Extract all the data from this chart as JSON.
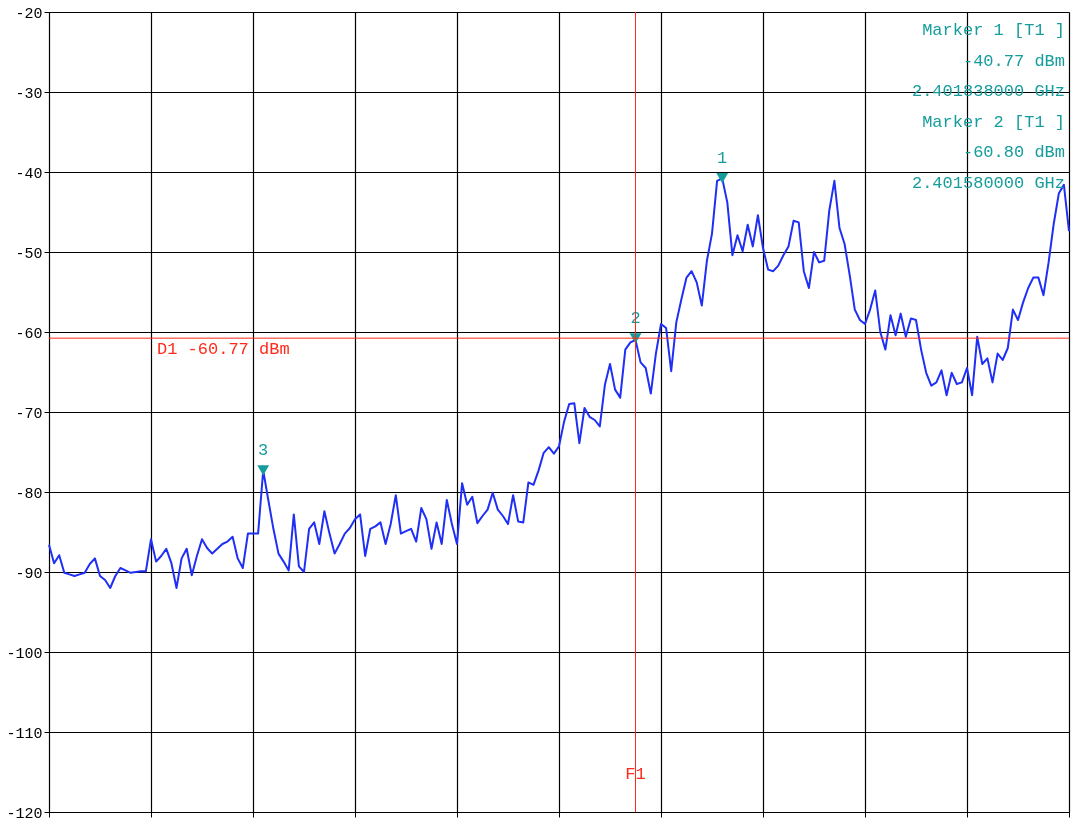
{
  "chart_data": {
    "type": "line",
    "categories": [
      null,
      null,
      null,
      null,
      null,
      null,
      null,
      null,
      null,
      null,
      null,
      null,
      null,
      null,
      null,
      null,
      null,
      null,
      null,
      null,
      null,
      null,
      null,
      null,
      null,
      null,
      null,
      null,
      null,
      null,
      null,
      null,
      null,
      null,
      null,
      null,
      null,
      null,
      null,
      null,
      null,
      null,
      null,
      null,
      null,
      null,
      null,
      null,
      null,
      null,
      null,
      null,
      null,
      null,
      null,
      null,
      null,
      null,
      null,
      null,
      null,
      null,
      null,
      null,
      null,
      null,
      null,
      null,
      null,
      null,
      null,
      null,
      null,
      null,
      null,
      null,
      null,
      null,
      null,
      null,
      null,
      null,
      null,
      null,
      null,
      null,
      null,
      null,
      null,
      null,
      null,
      null,
      null,
      null,
      null,
      null,
      null,
      null,
      null,
      null,
      null,
      null,
      null,
      null,
      null,
      null,
      null,
      null,
      null,
      null,
      null,
      null,
      null,
      null,
      null,
      null,
      null,
      null,
      null,
      null,
      null,
      null,
      null,
      null,
      null,
      null,
      null,
      null,
      null,
      null,
      null,
      null,
      null,
      null,
      null,
      null,
      null,
      null,
      null,
      null,
      null,
      null,
      null,
      null,
      null,
      null,
      null,
      null,
      null,
      null,
      null,
      null,
      null,
      null,
      null,
      null,
      null,
      null,
      null,
      null,
      null,
      null,
      null,
      null,
      null,
      null,
      null,
      null,
      null,
      null,
      null,
      null,
      null,
      null,
      null,
      null,
      null,
      null,
      null,
      null,
      null,
      null,
      null,
      null,
      null,
      null,
      null,
      null,
      null,
      null,
      null,
      null,
      null,
      null,
      null,
      null,
      null,
      null,
      null,
      null,
      null
    ],
    "ylim": [
      -120,
      -20
    ],
    "yticks": [
      -120,
      -110,
      -100,
      -90,
      -80,
      -70,
      -60,
      -50,
      -40,
      -30,
      -20
    ],
    "grid": true,
    "legend": false,
    "tick_labels": "y",
    "series": [
      {
        "color": "#1f2ff5",
        "line_style": "solid",
        "marker": "none",
        "values": [
          -86.6,
          -88.9,
          -87.9,
          -90.1,
          -90.3,
          -90.5,
          -90.3,
          -90.1,
          -89.0,
          -88.3,
          -90.5,
          -91.0,
          -92.0,
          -90.5,
          -89.5,
          -89.8,
          -90.1,
          -90.0,
          -89.9,
          -89.9,
          -85.9,
          -88.7,
          -88.0,
          -87.1,
          -88.9,
          -92.0,
          -88.3,
          -87.1,
          -90.4,
          -88.0,
          -85.9,
          -87.0,
          -87.7,
          -87.1,
          -86.5,
          -86.2,
          -85.6,
          -88.3,
          -89.5,
          -85.2,
          -85.2,
          -85.2,
          -77.3,
          -81.0,
          -84.6,
          -87.7,
          -88.7,
          -89.8,
          -82.8,
          -89.3,
          -90.0,
          -84.6,
          -83.8,
          -86.5,
          -82.4,
          -85.2,
          -87.7,
          -86.5,
          -85.2,
          -84.5,
          -83.4,
          -82.8,
          -88.0,
          -84.6,
          -84.3,
          -83.8,
          -86.5,
          -84.0,
          -80.4,
          -85.2,
          -84.9,
          -84.6,
          -86.2,
          -82.0,
          -83.4,
          -87.1,
          -83.8,
          -86.5,
          -81.0,
          -84.0,
          -86.5,
          -78.9,
          -81.6,
          -80.6,
          -83.9,
          -83.0,
          -82.2,
          -80.1,
          -82.2,
          -83.0,
          -84.0,
          -80.4,
          -83.7,
          -83.8,
          -78.8,
          -79.1,
          -77.3,
          -75.1,
          -74.4,
          -75.2,
          -74.3,
          -71.2,
          -69.0,
          -68.9,
          -73.9,
          -69.5,
          -70.6,
          -71.0,
          -71.8,
          -66.6,
          -64.0,
          -67.2,
          -68.2,
          -62.2,
          -61.3,
          -61.0,
          -63.8,
          -64.5,
          -67.7,
          -62.7,
          -59.0,
          -59.5,
          -64.9,
          -58.8,
          -55.9,
          -53.2,
          -52.4,
          -53.8,
          -56.7,
          -51.1,
          -47.7,
          -41.1,
          -40.8,
          -43.8,
          -50.4,
          -47.9,
          -49.9,
          -46.6,
          -49.3,
          -45.4,
          -49.5,
          -52.2,
          -52.4,
          -51.7,
          -50.4,
          -49.3,
          -46.1,
          -46.3,
          -52.4,
          -54.5,
          -50.0,
          -51.3,
          -51.1,
          -44.8,
          -41.1,
          -47.0,
          -49.0,
          -52.9,
          -57.2,
          -58.5,
          -59.0,
          -57.2,
          -54.8,
          -60.0,
          -62.2,
          -57.9,
          -60.4,
          -57.7,
          -60.6,
          -58.3,
          -58.5,
          -62.2,
          -65.1,
          -66.7,
          -66.3,
          -64.8,
          -67.9,
          -65.1,
          -66.5,
          -66.3,
          -64.5,
          -67.9,
          -60.6,
          -64.0,
          -63.3,
          -66.3,
          -62.7,
          -63.5,
          -62.0,
          -57.2,
          -58.5,
          -56.3,
          -54.5,
          -53.2,
          -53.2,
          -55.4,
          -51.3,
          -46.5,
          -42.7,
          -41.6,
          -47.4
        ]
      },
      {
        "type": "scatter",
        "name": "1",
        "color": "#169c9c",
        "marker": "triangle",
        "values": [
          null,
          null,
          null,
          null,
          null,
          null,
          null,
          null,
          null,
          null,
          null,
          null,
          null,
          null,
          null,
          null,
          null,
          null,
          null,
          null,
          null,
          null,
          null,
          null,
          null,
          null,
          null,
          null,
          null,
          null,
          null,
          null,
          null,
          null,
          null,
          null,
          null,
          null,
          null,
          null,
          null,
          null,
          null,
          null,
          null,
          null,
          null,
          null,
          null,
          null,
          null,
          null,
          null,
          null,
          null,
          null,
          null,
          null,
          null,
          null,
          null,
          null,
          null,
          null,
          null,
          null,
          null,
          null,
          null,
          null,
          null,
          null,
          null,
          null,
          null,
          null,
          null,
          null,
          null,
          null,
          null,
          null,
          null,
          null,
          null,
          null,
          null,
          null,
          null,
          null,
          null,
          null,
          null,
          null,
          null,
          null,
          null,
          null,
          null,
          null,
          null,
          null,
          null,
          null,
          null,
          null,
          null,
          null,
          null,
          null,
          null,
          null,
          null,
          null,
          null,
          null,
          null,
          null,
          null,
          null,
          null,
          null,
          null,
          null,
          null,
          null,
          null,
          null,
          null,
          null,
          null,
          null,
          -40.77,
          null,
          null,
          null,
          null,
          null,
          null,
          null,
          null,
          null,
          null,
          null,
          null,
          null,
          null,
          null,
          null,
          null,
          null,
          null,
          null,
          null,
          null,
          null,
          null,
          null,
          null,
          null,
          null,
          null,
          null,
          null,
          null,
          null,
          null,
          null,
          null,
          null,
          null,
          null,
          null,
          null,
          null,
          null,
          null,
          null,
          null,
          null,
          null,
          null,
          null,
          null,
          null,
          null,
          null,
          null,
          null,
          null,
          null,
          null,
          null,
          null,
          null,
          null,
          null,
          null,
          null,
          null,
          null
        ]
      },
      {
        "type": "scatter",
        "name": "2",
        "color": "#169c9c",
        "marker": "triangle",
        "values": [
          null,
          null,
          null,
          null,
          null,
          null,
          null,
          null,
          null,
          null,
          null,
          null,
          null,
          null,
          null,
          null,
          null,
          null,
          null,
          null,
          null,
          null,
          null,
          null,
          null,
          null,
          null,
          null,
          null,
          null,
          null,
          null,
          null,
          null,
          null,
          null,
          null,
          null,
          null,
          null,
          null,
          null,
          null,
          null,
          null,
          null,
          null,
          null,
          null,
          null,
          null,
          null,
          null,
          null,
          null,
          null,
          null,
          null,
          null,
          null,
          null,
          null,
          null,
          null,
          null,
          null,
          null,
          null,
          null,
          null,
          null,
          null,
          null,
          null,
          null,
          null,
          null,
          null,
          null,
          null,
          null,
          null,
          null,
          null,
          null,
          null,
          null,
          null,
          null,
          null,
          null,
          null,
          null,
          null,
          null,
          null,
          null,
          null,
          null,
          null,
          null,
          null,
          null,
          null,
          null,
          null,
          null,
          null,
          null,
          null,
          null,
          null,
          null,
          null,
          null,
          -60.8,
          null,
          null,
          null,
          null,
          null,
          null,
          null,
          null,
          null,
          null,
          null,
          null,
          null,
          null,
          null,
          null,
          null,
          null,
          null,
          null,
          null,
          null,
          null,
          null,
          null,
          null,
          null,
          null,
          null,
          null,
          null,
          null,
          null,
          null,
          null,
          null,
          null,
          null,
          null,
          null,
          null,
          null,
          null,
          null,
          null,
          null,
          null,
          null,
          null,
          null,
          null,
          null,
          null,
          null,
          null,
          null,
          null,
          null,
          null,
          null,
          null,
          null,
          null,
          null,
          null,
          null,
          null,
          null,
          null,
          null,
          null,
          null,
          null,
          null,
          null,
          null,
          null,
          null,
          null,
          null,
          null,
          null,
          null,
          null,
          null
        ]
      },
      {
        "type": "scatter",
        "name": "3",
        "color": "#169c9c",
        "marker": "triangle",
        "values": [
          null,
          null,
          null,
          null,
          null,
          null,
          null,
          null,
          null,
          null,
          null,
          null,
          null,
          null,
          null,
          null,
          null,
          null,
          null,
          null,
          null,
          null,
          null,
          null,
          null,
          null,
          null,
          null,
          null,
          null,
          null,
          null,
          null,
          null,
          null,
          null,
          null,
          null,
          null,
          null,
          null,
          null,
          -77.3,
          null,
          null,
          null,
          null,
          null,
          null,
          null,
          null,
          null,
          null,
          null,
          null,
          null,
          null,
          null,
          null,
          null,
          null,
          null,
          null,
          null,
          null,
          null,
          null,
          null,
          null,
          null,
          null,
          null,
          null,
          null,
          null,
          null,
          null,
          null,
          null,
          null,
          null,
          null,
          null,
          null,
          null,
          null,
          null,
          null,
          null,
          null,
          null,
          null,
          null,
          null,
          null,
          null,
          null,
          null,
          null,
          null,
          null,
          null,
          null,
          null,
          null,
          null,
          null,
          null,
          null,
          null,
          null,
          null,
          null,
          null,
          null,
          null,
          null,
          null,
          null,
          null,
          null,
          null,
          null,
          null,
          null,
          null,
          null,
          null,
          null,
          null,
          null,
          null,
          null,
          null,
          null,
          null,
          null,
          null,
          null,
          null,
          null,
          null,
          null,
          null,
          null,
          null,
          null,
          null,
          null,
          null,
          null,
          null,
          null,
          null,
          null,
          null,
          null,
          null,
          null,
          null,
          null,
          null,
          null,
          null,
          null,
          null,
          null,
          null,
          null,
          null,
          null,
          null,
          null,
          null,
          null,
          null,
          null,
          null,
          null,
          null,
          null,
          null,
          null,
          null,
          null,
          null,
          null,
          null,
          null,
          null,
          null,
          null,
          null,
          null,
          null,
          null,
          null,
          null,
          null,
          null,
          null
        ]
      }
    ],
    "ref_lines": [
      {
        "axis": "y",
        "value": -60.77,
        "label": "D1 -60.77 dBm",
        "color": "#ff2a1a"
      },
      {
        "axis": "x",
        "label": "F1",
        "color": "#ff2a1a"
      }
    ],
    "annotations": [
      "Marker 1 [T1 ]",
      "-40.77 dBm",
      "2.401838000 GHz",
      "Marker 2 [T1 ]",
      "-60.80 dBm",
      "2.401580000 GHz"
    ]
  }
}
